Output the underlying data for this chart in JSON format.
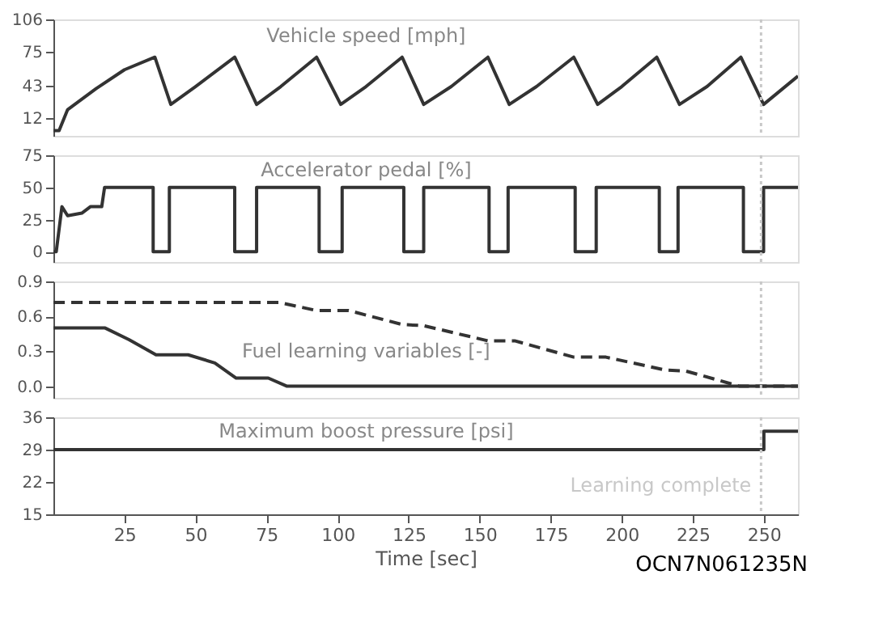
{
  "chart_data": [
    {
      "type": "line",
      "title": "Vehicle speed [mph]",
      "xlim": [
        0,
        262
      ],
      "xticks": [
        25,
        50,
        75,
        100,
        125,
        150,
        175,
        200,
        225,
        250
      ],
      "ylim": [
        -5,
        106
      ],
      "yticks": [
        12,
        43,
        75,
        106
      ],
      "tick_labels": "y",
      "line_style": "solid",
      "series": [
        {
          "color": "#333333",
          "x": [
            0,
            2,
            5,
            10,
            15,
            25,
            35.7,
            41.3,
            50,
            63.8,
            71.5,
            80,
            92.6,
            101.1,
            110,
            122.7,
            130.3,
            140,
            152.9,
            160.4,
            170,
            183.1,
            191.5,
            200,
            212.3,
            220.3,
            230,
            241.9,
            249.9,
            262
          ],
          "values": [
            0,
            0,
            20,
            30,
            40,
            58,
            70,
            25,
            42,
            70,
            25,
            42,
            70,
            25,
            42,
            70,
            25,
            42,
            70,
            25,
            42,
            70,
            25,
            42,
            70,
            25,
            42,
            70,
            25,
            52
          ]
        }
      ],
      "ref_lines": [
        {
          "axis": "x",
          "value": 249,
          "color": "#c8c8c8",
          "line_style": "dotted"
        }
      ]
    },
    {
      "type": "line",
      "title": "Accelerator pedal  [%]",
      "xlim": [
        0,
        262
      ],
      "xticks": [
        25,
        50,
        75,
        100,
        125,
        150,
        175,
        200,
        225,
        250
      ],
      "ylim": [
        -8,
        75
      ],
      "yticks": [
        0,
        25,
        50,
        75
      ],
      "tick_labels": "y",
      "line_style": "solid",
      "series": [
        {
          "color": "#333333",
          "x": [
            0,
            1,
            3,
            5,
            10,
            13,
            17,
            18,
            35.1,
            35.1,
            40.8,
            40.8,
            63.8,
            63.8,
            71.5,
            71.5,
            93.5,
            93.5,
            101.6,
            101.6,
            123.3,
            123.3,
            130.3,
            130.3,
            153.3,
            153.3,
            160.0,
            160.0,
            183.6,
            183.6,
            191.0,
            191.0,
            213.2,
            213.2,
            219.8,
            219.8,
            242.8,
            242.8,
            249.9,
            249.9,
            262
          ],
          "values": [
            0,
            0,
            35,
            28,
            30,
            35,
            35,
            50,
            50,
            0,
            0,
            50,
            50,
            0,
            0,
            50,
            50,
            0,
            0,
            50,
            50,
            0,
            0,
            50,
            50,
            0,
            0,
            50,
            50,
            0,
            0,
            50,
            50,
            0,
            0,
            50,
            50,
            0,
            0,
            50,
            50
          ]
        }
      ],
      "ref_lines": [
        {
          "axis": "x",
          "value": 249,
          "color": "#c8c8c8",
          "line_style": "dotted"
        }
      ]
    },
    {
      "type": "line",
      "title": "Fuel learning variables [-]",
      "xlim": [
        0,
        262
      ],
      "xticks": [
        25,
        50,
        75,
        100,
        125,
        150,
        175,
        200,
        225,
        250
      ],
      "ylim": [
        -0.1,
        0.9
      ],
      "yticks": [
        {
          "value": 0,
          "label": "0.0"
        },
        0.3,
        0.6,
        0.9
      ],
      "tick_labels": "y",
      "series": [
        {
          "color": "#333333",
          "line_style": "dashed",
          "x": [
            0,
            79.4,
            92.6,
            103.9,
            122.7,
            130.3,
            152.9,
            162.3,
            183.1,
            194.4,
            215.1,
            222.6,
            241.5,
            262
          ],
          "values": [
            0.72,
            0.72,
            0.65,
            0.65,
            0.53,
            0.52,
            0.39,
            0.39,
            0.25,
            0.25,
            0.14,
            0.13,
            0,
            0
          ]
        },
        {
          "color": "#333333",
          "line_style": "solid",
          "x": [
            0,
            18.2,
            26.6,
            36.1,
            47.4,
            56.8,
            64.3,
            75.6,
            82.2,
            262
          ],
          "values": [
            0.5,
            0.5,
            0.4,
            0.27,
            0.27,
            0.2,
            0.07,
            0.07,
            0,
            0
          ]
        }
      ],
      "ref_lines": [
        {
          "axis": "x",
          "value": 249,
          "color": "#c8c8c8",
          "line_style": "dotted"
        }
      ]
    },
    {
      "type": "line",
      "title": "Maximum boost pressure [psi]",
      "xlabel": "Time [sec]",
      "xlim": [
        0,
        262
      ],
      "xticks": [
        25,
        50,
        75,
        100,
        125,
        150,
        175,
        200,
        225,
        250
      ],
      "ylim": [
        15,
        36
      ],
      "yticks": [
        15,
        22,
        29,
        36
      ],
      "line_style": "solid",
      "series": [
        {
          "color": "#333333",
          "x": [
            0,
            250,
            250,
            262
          ],
          "values": [
            29,
            29,
            33,
            33
          ]
        }
      ],
      "ref_lines": [
        {
          "axis": "x",
          "value": 249,
          "label": "Learning complete",
          "color": "#c8c8c8",
          "line_style": "dotted"
        }
      ],
      "annotations": [
        "OCN7N061235N"
      ]
    }
  ]
}
